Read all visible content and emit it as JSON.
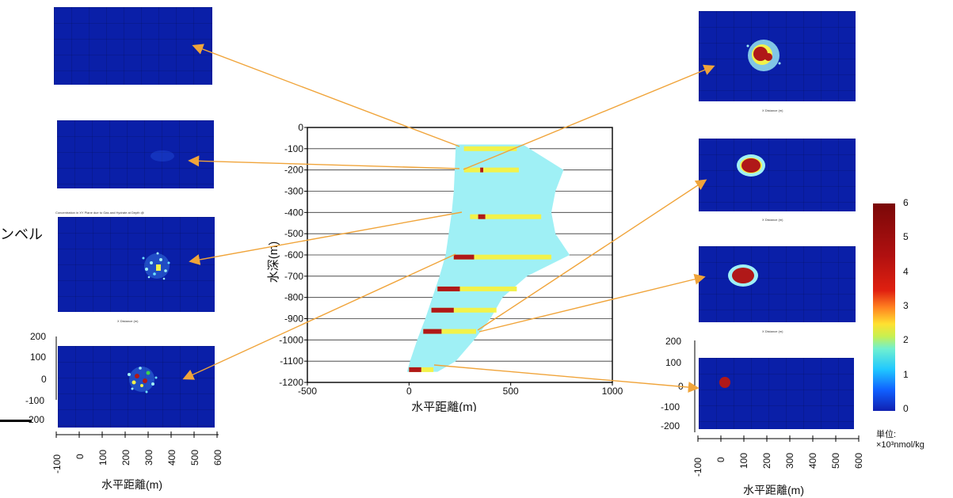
{
  "side_label": "ンベル",
  "unit_label_line1": "単位:",
  "unit_label_line2": "×10³nmol/kg",
  "panel3_title": "Concentration in XY Plane due to Gas and Hydrate at Depth @",
  "panel_xlabel": "X Distance (m)",
  "colors": {
    "panel_bg": "#0a1fa8",
    "plume": "#9ff0f5",
    "yellow": "#f2f24a",
    "red": "#b01818",
    "arrow": "#f0a43a"
  },
  "chart_data": [
    {
      "type": "bar",
      "name": "depth-profile",
      "xlabel": "水平距離(m)",
      "ylabel": "水深(m)",
      "xlim": [
        -500,
        1000
      ],
      "ylim": [
        -1200,
        0
      ],
      "x_ticks": [
        "-500",
        "0",
        "500",
        "1000"
      ],
      "y_ticks": [
        "0",
        "-100",
        "-200",
        "-300",
        "-400",
        "-500",
        "-600",
        "-700",
        "-800",
        "-900",
        "-1000",
        "-1100",
        "-1200"
      ],
      "grid": true,
      "plume_envelope": [
        {
          "depth": -80,
          "xmin": 230,
          "xmax": 560
        },
        {
          "depth": -200,
          "xmin": 225,
          "xmax": 760
        },
        {
          "depth": -300,
          "xmin": 220,
          "xmax": 720
        },
        {
          "depth": -400,
          "xmin": 210,
          "xmax": 700
        },
        {
          "depth": -500,
          "xmin": 195,
          "xmax": 720
        },
        {
          "depth": -600,
          "xmin": 180,
          "xmax": 790
        },
        {
          "depth": -700,
          "xmin": 150,
          "xmax": 580
        },
        {
          "depth": -800,
          "xmin": 115,
          "xmax": 460
        },
        {
          "depth": -900,
          "xmin": 80,
          "xmax": 400
        },
        {
          "depth": -1000,
          "xmin": 40,
          "xmax": 320
        },
        {
          "depth": -1100,
          "xmin": 5,
          "xmax": 230
        },
        {
          "depth": -1150,
          "xmin": -10,
          "xmax": 140
        }
      ],
      "bands": [
        {
          "depth": -100,
          "yellow": [
            270,
            530
          ],
          "red": []
        },
        {
          "depth": -200,
          "yellow": [
            270,
            540
          ],
          "red": [
            350,
            365
          ]
        },
        {
          "depth": -420,
          "yellow": [
            300,
            650
          ],
          "red": [
            340,
            375
          ]
        },
        {
          "depth": -610,
          "yellow": [
            220,
            700
          ],
          "red": [
            220,
            320
          ]
        },
        {
          "depth": -760,
          "yellow": [
            140,
            530
          ],
          "red": [
            140,
            250
          ]
        },
        {
          "depth": -860,
          "yellow": [
            110,
            430
          ],
          "red": [
            110,
            220
          ]
        },
        {
          "depth": -960,
          "yellow": [
            70,
            330
          ],
          "red": [
            70,
            160
          ]
        },
        {
          "depth": -1140,
          "yellow": [
            0,
            120
          ],
          "red": [
            0,
            60
          ]
        }
      ]
    },
    {
      "type": "heatmap",
      "name": "concentration-colorbar",
      "ticks": [
        "0",
        "1",
        "2",
        "3",
        "4",
        "5",
        "6"
      ],
      "range": [
        0,
        6
      ]
    },
    {
      "type": "heatmap",
      "name": "xy-plane-left-bottom",
      "xlabel": "水平距離(m)",
      "y_ticks": [
        "200",
        "100",
        "0",
        "-100",
        "-200"
      ],
      "x_ticks": [
        "-100",
        "0",
        "100",
        "200",
        "300",
        "400",
        "500",
        "600"
      ],
      "xlim": [
        -100,
        600
      ],
      "ylim": [
        -200,
        200
      ]
    },
    {
      "type": "heatmap",
      "name": "xy-plane-right-bottom",
      "xlabel": "水平距離(m)",
      "y_ticks": [
        "200",
        "100",
        "0",
        "-100",
        "-200"
      ],
      "x_ticks": [
        "-100",
        "0",
        "100",
        "200",
        "300",
        "400",
        "500",
        "600"
      ],
      "xlim": [
        -100,
        600
      ],
      "ylim": [
        -200,
        200
      ]
    }
  ]
}
